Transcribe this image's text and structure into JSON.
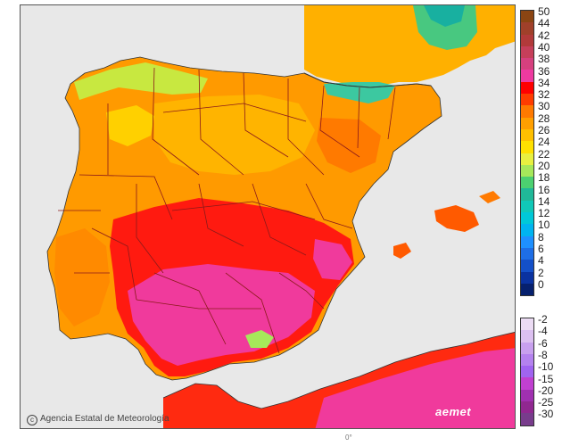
{
  "credit": {
    "text": "Agencia Estatal de Meteorología",
    "icon": "copyright-icon"
  },
  "logo": {
    "text": "aemet"
  },
  "scale_positive": [
    {
      "label": "50",
      "color": "#8b4513"
    },
    {
      "label": "44",
      "color": "#a0402a"
    },
    {
      "label": "42",
      "color": "#b23a3a"
    },
    {
      "label": "40",
      "color": "#c63f5a"
    },
    {
      "label": "38",
      "color": "#d6407e"
    },
    {
      "label": "36",
      "color": "#ee3aa0"
    },
    {
      "label": "34",
      "color": "#ff0000"
    },
    {
      "label": "32",
      "color": "#ff3c00"
    },
    {
      "label": "30",
      "color": "#ff7a00"
    },
    {
      "label": "28",
      "color": "#ff9f00"
    },
    {
      "label": "26",
      "color": "#ffc000"
    },
    {
      "label": "24",
      "color": "#ffe000"
    },
    {
      "label": "22",
      "color": "#e8f040"
    },
    {
      "label": "20",
      "color": "#a6e85a"
    },
    {
      "label": "18",
      "color": "#4cd070"
    },
    {
      "label": "16",
      "color": "#20b898"
    },
    {
      "label": "14",
      "color": "#10c8b8"
    },
    {
      "label": "12",
      "color": "#00c8d8"
    },
    {
      "label": "10",
      "color": "#00b4f0"
    },
    {
      "label": "8",
      "color": "#1e90ff"
    },
    {
      "label": "6",
      "color": "#1e6ee6"
    },
    {
      "label": "4",
      "color": "#1450c8"
    },
    {
      "label": "2",
      "color": "#0a32a0"
    },
    {
      "label": "0",
      "color": "#06206e"
    }
  ],
  "scale_negative": [
    {
      "label": "-2",
      "color": "#ecdcf4"
    },
    {
      "label": "-4",
      "color": "#dcc0f0"
    },
    {
      "label": "-6",
      "color": "#c8a0ee"
    },
    {
      "label": "-8",
      "color": "#b482ee"
    },
    {
      "label": "-10",
      "color": "#a064f0"
    },
    {
      "label": "-15",
      "color": "#c040d0"
    },
    {
      "label": "-20",
      "color": "#a030b0"
    },
    {
      "label": "-25",
      "color": "#902890"
    },
    {
      "label": "-30",
      "color": "#783c8c"
    }
  ],
  "bottom_mark": "0°"
}
